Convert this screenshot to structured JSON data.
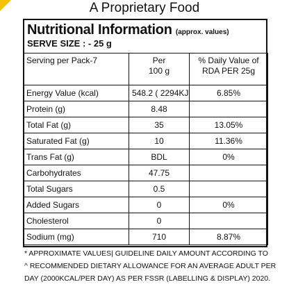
{
  "title": "A Proprietary Food",
  "header": {
    "title": "Nutritional Information",
    "note": "(approx. values)",
    "serve_size": "SERVE SIZE : - 25 g"
  },
  "table": {
    "columns": [
      [
        "Serving per Pack-7"
      ],
      [
        "Per",
        "100 g"
      ],
      [
        "% Daily Value of",
        "RDA PER 25g"
      ]
    ],
    "rows": [
      [
        "Energy Value (kcal)",
        "548.2 ( 2294KJ )",
        "6.85%"
      ],
      [
        "Protein (g)",
        "8.48",
        null
      ],
      [
        "Total Fat (g)",
        "35",
        "13.05%"
      ],
      [
        "Saturated Fat (g)",
        "10",
        "11.36%"
      ],
      [
        "Trans Fat (g)",
        "BDL",
        "0%"
      ],
      [
        "Carbohydrates",
        "47.75",
        null
      ],
      [
        "Total Sugars",
        "0.5",
        null
      ],
      [
        "Added Sugars",
        "0",
        "0%"
      ],
      [
        "Cholesterol",
        "0",
        null
      ],
      [
        "Sodium (mg)",
        "710",
        "8.87%"
      ]
    ]
  },
  "footnote": [
    "* APPROXIMATE VALUES| GUIDELINE DAILY AMOUNT ACCORDING TO",
    "^ RECOMMENDED DIETARY ALLOWANCE FOR AN AVERAGE ADULT PER",
    "DAY (2000KCAL/PER DAY) AS PER FSSR (LABELLING & DISPLAY) 2020."
  ]
}
